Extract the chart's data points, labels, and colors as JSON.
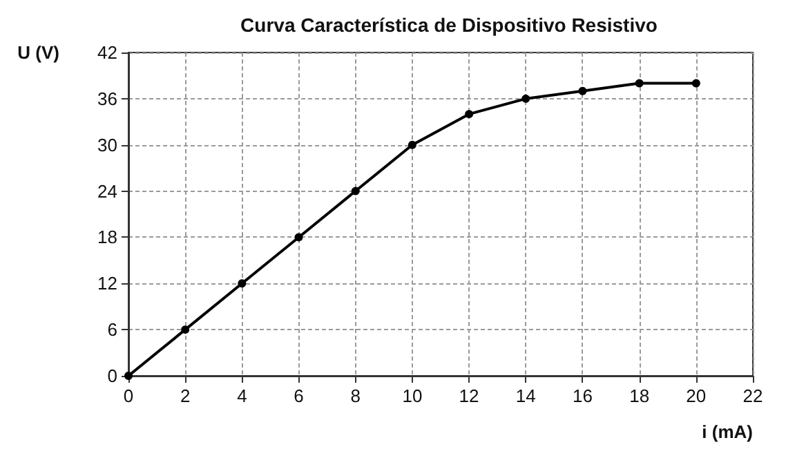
{
  "chart_data": {
    "type": "line",
    "title": "Curva Característica de Dispositivo Resistivo",
    "xlabel": "i (mA)",
    "ylabel": "U (V)",
    "x": [
      0,
      2,
      4,
      6,
      8,
      10,
      12,
      14,
      16,
      18,
      20
    ],
    "series": [
      {
        "color": "#000000",
        "values": [
          0,
          6,
          12,
          18,
          24,
          30,
          34,
          36,
          37,
          38,
          38
        ]
      }
    ],
    "xlim": [
      0,
      22
    ],
    "xticks": [
      0,
      2,
      4,
      6,
      8,
      10,
      12,
      14,
      16,
      18,
      20,
      22
    ],
    "ylim": [
      0,
      42
    ],
    "yticks": [
      0,
      6,
      12,
      18,
      24,
      30,
      36,
      42
    ],
    "grid": true,
    "marker": "circle",
    "line_style": "solid"
  }
}
